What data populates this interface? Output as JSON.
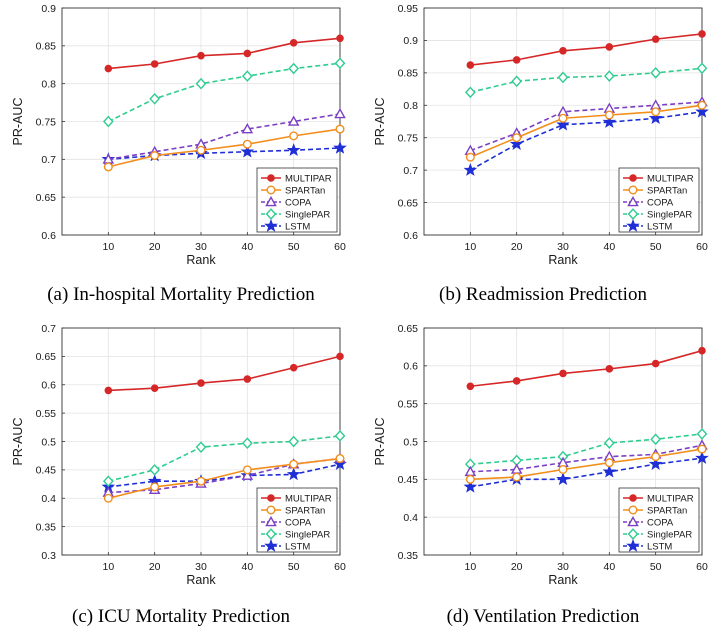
{
  "figure": {
    "captions": [
      "(a) In-hospital Mortality Prediction",
      "(b) Readmission Prediction",
      "(c) ICU Mortality Prediction",
      "(d) Ventilation Prediction"
    ]
  },
  "series_styles": [
    {
      "name": "MULTIPAR",
      "color": "#d62728",
      "marker": "circle",
      "dash": false
    },
    {
      "name": "SPARTan",
      "color": "#f28e1b",
      "marker": "circle-open",
      "dash": false
    },
    {
      "name": "COPA",
      "color": "#7b3fc4",
      "marker": "triangle-open",
      "dash": true
    },
    {
      "name": "SinglePAR",
      "color": "#2ecc8f",
      "marker": "diamond-open",
      "dash": true
    },
    {
      "name": "LSTM",
      "color": "#1f2fd6",
      "marker": "star",
      "dash": true
    }
  ],
  "chart_data": [
    {
      "type": "line",
      "title": "",
      "xlabel": "Rank",
      "ylabel": "PR-AUC",
      "x": [
        10,
        20,
        30,
        40,
        50,
        60
      ],
      "xlim": [
        0,
        60
      ],
      "ylim": [
        0.6,
        0.9
      ],
      "xticks": [
        "10",
        "20",
        "30",
        "40",
        "50",
        "60"
      ],
      "yticks": [
        "0.6",
        "0.65",
        "0.7",
        "0.75",
        "0.8",
        "0.85",
        "0.9"
      ],
      "grid": true,
      "legend_position": "bottom-right",
      "series": [
        {
          "name": "MULTIPAR",
          "values": [
            0.82,
            0.826,
            0.837,
            0.84,
            0.854,
            0.86
          ]
        },
        {
          "name": "SPARTan",
          "values": [
            0.69,
            0.705,
            0.712,
            0.72,
            0.731,
            0.74
          ]
        },
        {
          "name": "COPA",
          "values": [
            0.7,
            0.71,
            0.72,
            0.74,
            0.75,
            0.76
          ]
        },
        {
          "name": "SinglePAR",
          "values": [
            0.75,
            0.78,
            0.8,
            0.81,
            0.82,
            0.827
          ]
        },
        {
          "name": "LSTM",
          "values": [
            0.7,
            0.705,
            0.708,
            0.71,
            0.712,
            0.715
          ]
        }
      ]
    },
    {
      "type": "line",
      "title": "",
      "xlabel": "Rank",
      "ylabel": "PR-AUC",
      "x": [
        10,
        20,
        30,
        40,
        50,
        60
      ],
      "xlim": [
        0,
        60
      ],
      "ylim": [
        0.6,
        0.95
      ],
      "xticks": [
        "10",
        "20",
        "30",
        "40",
        "50",
        "60"
      ],
      "yticks": [
        "0.6",
        "0.65",
        "0.7",
        "0.75",
        "0.8",
        "0.85",
        "0.9",
        "0.95"
      ],
      "grid": true,
      "legend_position": "bottom-right",
      "series": [
        {
          "name": "MULTIPAR",
          "values": [
            0.862,
            0.87,
            0.884,
            0.89,
            0.902,
            0.91
          ]
        },
        {
          "name": "SPARTan",
          "values": [
            0.72,
            0.75,
            0.78,
            0.785,
            0.79,
            0.8
          ]
        },
        {
          "name": "COPA",
          "values": [
            0.73,
            0.757,
            0.79,
            0.795,
            0.8,
            0.805
          ]
        },
        {
          "name": "SinglePAR",
          "values": [
            0.82,
            0.837,
            0.843,
            0.845,
            0.85,
            0.857
          ]
        },
        {
          "name": "LSTM",
          "values": [
            0.7,
            0.74,
            0.77,
            0.774,
            0.78,
            0.79
          ]
        }
      ]
    },
    {
      "type": "line",
      "title": "",
      "xlabel": "Rank",
      "ylabel": "PR-AUC",
      "x": [
        10,
        20,
        30,
        40,
        50,
        60
      ],
      "xlim": [
        0,
        60
      ],
      "ylim": [
        0.3,
        0.7
      ],
      "xticks": [
        "10",
        "20",
        "30",
        "40",
        "50",
        "60"
      ],
      "yticks": [
        "0.3",
        "0.35",
        "0.4",
        "0.45",
        "0.5",
        "0.55",
        "0.6",
        "0.65",
        "0.7"
      ],
      "grid": true,
      "legend_position": "bottom-right",
      "series": [
        {
          "name": "MULTIPAR",
          "values": [
            0.59,
            0.594,
            0.603,
            0.61,
            0.63,
            0.65
          ]
        },
        {
          "name": "SPARTan",
          "values": [
            0.4,
            0.42,
            0.43,
            0.45,
            0.46,
            0.47
          ]
        },
        {
          "name": "COPA",
          "values": [
            0.41,
            0.415,
            0.426,
            0.44,
            0.46,
            0.47
          ]
        },
        {
          "name": "SinglePAR",
          "values": [
            0.43,
            0.45,
            0.49,
            0.497,
            0.5,
            0.51
          ]
        },
        {
          "name": "LSTM",
          "values": [
            0.42,
            0.43,
            0.43,
            0.44,
            0.442,
            0.46
          ]
        }
      ]
    },
    {
      "type": "line",
      "title": "",
      "xlabel": "Rank",
      "ylabel": "PR-AUC",
      "x": [
        10,
        20,
        30,
        40,
        50,
        60
      ],
      "xlim": [
        0,
        60
      ],
      "ylim": [
        0.35,
        0.65
      ],
      "xticks": [
        "10",
        "20",
        "30",
        "40",
        "50",
        "60"
      ],
      "yticks": [
        "0.35",
        "0.4",
        "0.45",
        "0.5",
        "0.55",
        "0.6",
        "0.65"
      ],
      "grid": true,
      "legend_position": "bottom-right",
      "series": [
        {
          "name": "MULTIPAR",
          "values": [
            0.573,
            0.58,
            0.59,
            0.596,
            0.603,
            0.62
          ]
        },
        {
          "name": "SPARTan",
          "values": [
            0.45,
            0.453,
            0.463,
            0.472,
            0.48,
            0.49
          ]
        },
        {
          "name": "COPA",
          "values": [
            0.46,
            0.463,
            0.472,
            0.48,
            0.483,
            0.495
          ]
        },
        {
          "name": "SinglePAR",
          "values": [
            0.47,
            0.475,
            0.48,
            0.498,
            0.503,
            0.51
          ]
        },
        {
          "name": "LSTM",
          "values": [
            0.44,
            0.45,
            0.45,
            0.46,
            0.47,
            0.478
          ]
        }
      ]
    }
  ]
}
